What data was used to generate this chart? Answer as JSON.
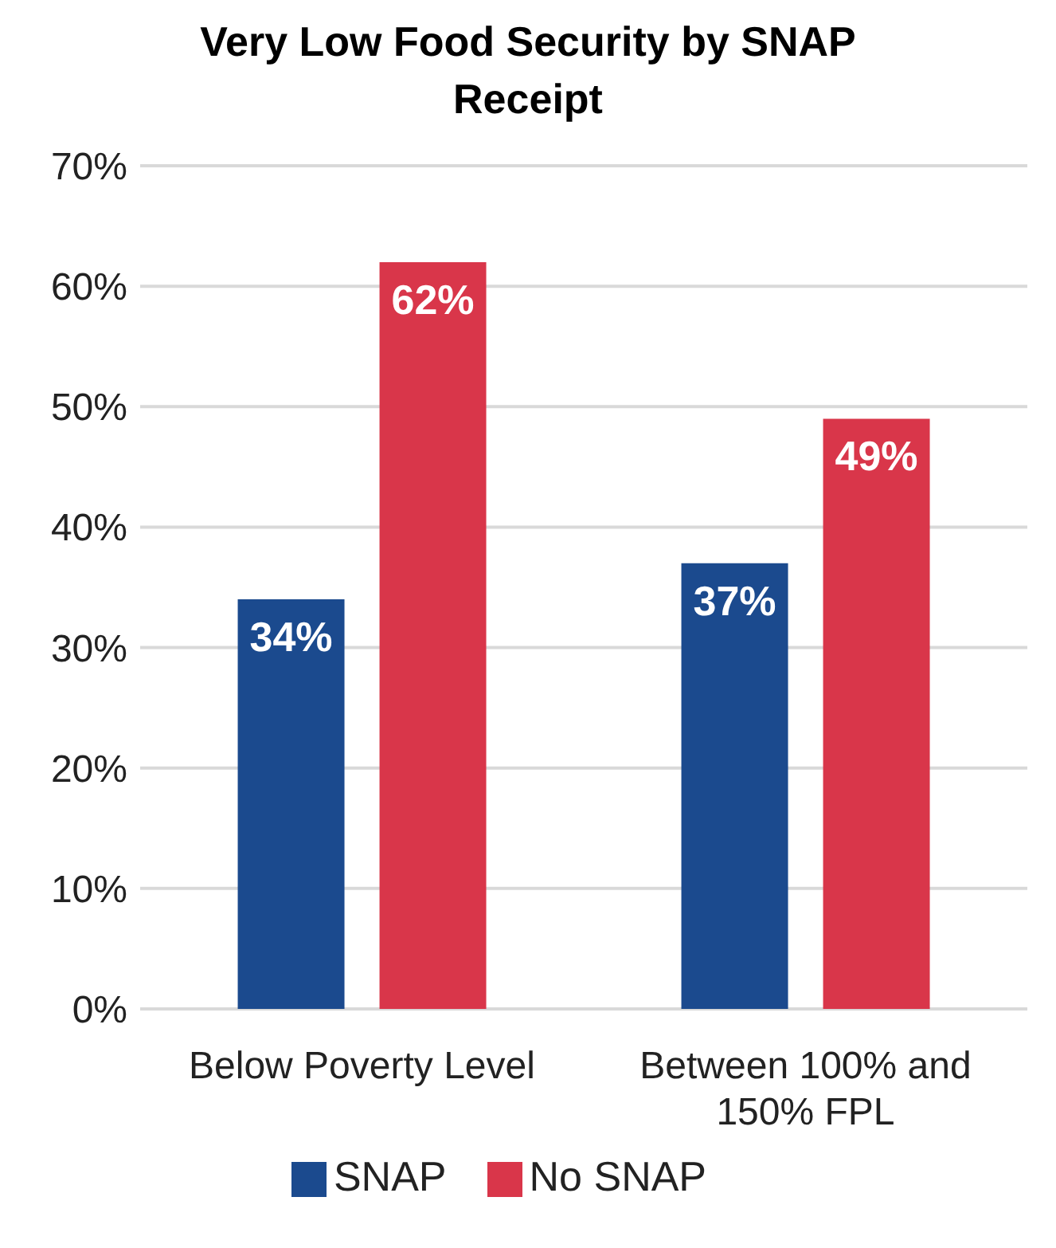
{
  "chart_data": {
    "type": "bar",
    "title": "Very Low Food Security by SNAP Receipt",
    "categories": [
      "Below Poverty Level",
      "Between 100% and 150% FPL"
    ],
    "series": [
      {
        "name": "SNAP",
        "color": "#1b4a8e",
        "values": [
          34,
          37
        ],
        "value_labels": [
          "34%",
          "37%"
        ]
      },
      {
        "name": "No SNAP",
        "color": "#d9364a",
        "values": [
          62,
          49
        ],
        "value_labels": [
          "62%",
          "49%"
        ]
      }
    ],
    "ylim": [
      0,
      70
    ],
    "yticks": [
      {
        "value": 0,
        "label": "0%"
      },
      {
        "value": 10,
        "label": "10%"
      },
      {
        "value": 20,
        "label": "20%"
      },
      {
        "value": 30,
        "label": "30%"
      },
      {
        "value": 40,
        "label": "40%"
      },
      {
        "value": 50,
        "label": "50%"
      },
      {
        "value": 60,
        "label": "60%"
      },
      {
        "value": 70,
        "label": "70%"
      }
    ],
    "grid": "y",
    "legend": "bottom"
  }
}
